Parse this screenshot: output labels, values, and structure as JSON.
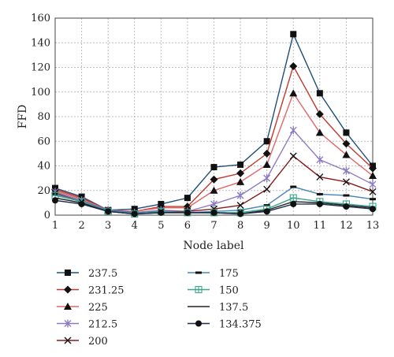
{
  "chart_data": {
    "type": "line",
    "xlabel": "Node label",
    "ylabel": "FFD",
    "categories": [
      "1",
      "2",
      "3",
      "4",
      "5",
      "6",
      "7",
      "8",
      "9",
      "10",
      "11",
      "12",
      "13"
    ],
    "ylim": [
      0,
      160
    ],
    "yticks": [
      0,
      20,
      40,
      60,
      80,
      100,
      120,
      140,
      160
    ],
    "grid": "both",
    "legend_placement": "bottom",
    "series": [
      {
        "name": "237.5",
        "marker": "square",
        "color": "#1f4e79",
        "values": [
          22,
          15,
          4,
          5,
          9,
          14,
          39,
          41,
          60,
          147,
          99,
          67,
          40
        ]
      },
      {
        "name": "231.25",
        "marker": "diamond",
        "color": "#c0392b",
        "values": [
          21,
          14,
          4,
          3,
          7,
          7,
          29,
          34,
          50,
          121,
          82,
          58,
          38
        ]
      },
      {
        "name": "225",
        "marker": "triangle",
        "color": "#e06666",
        "values": [
          20,
          13,
          4,
          3,
          6,
          6,
          20,
          27,
          41,
          99,
          67,
          49,
          32
        ]
      },
      {
        "name": "212.5",
        "marker": "star",
        "color": "#8e7cc3",
        "values": [
          19,
          12,
          4,
          2,
          4,
          3,
          9,
          16,
          30,
          69,
          45,
          36,
          25
        ]
      },
      {
        "name": "200",
        "marker": "x",
        "color": "#8b1a1a",
        "values": [
          18,
          11,
          4,
          2,
          3,
          3,
          5,
          8,
          21,
          48,
          31,
          27,
          19
        ]
      },
      {
        "name": "175",
        "marker": "dash",
        "color": "#4a86b8",
        "values": [
          17,
          11,
          4,
          2,
          3,
          2,
          3,
          4,
          8,
          23,
          17,
          16,
          13
        ]
      },
      {
        "name": "150",
        "marker": "plus",
        "color": "#3aa58c",
        "values": [
          16,
          11,
          3,
          1,
          3,
          2,
          2,
          2,
          5,
          14,
          11,
          9,
          7
        ]
      },
      {
        "name": "137.5",
        "marker": "none",
        "color": "#222222",
        "values": [
          14,
          10,
          3,
          1,
          2,
          2,
          2,
          1,
          4,
          11,
          10,
          8,
          6
        ]
      },
      {
        "name": "134.375",
        "marker": "circle",
        "color": "#1c2c4a",
        "values": [
          12,
          9,
          3,
          1,
          2,
          2,
          2,
          1,
          3,
          9,
          9,
          7,
          5
        ]
      }
    ]
  }
}
